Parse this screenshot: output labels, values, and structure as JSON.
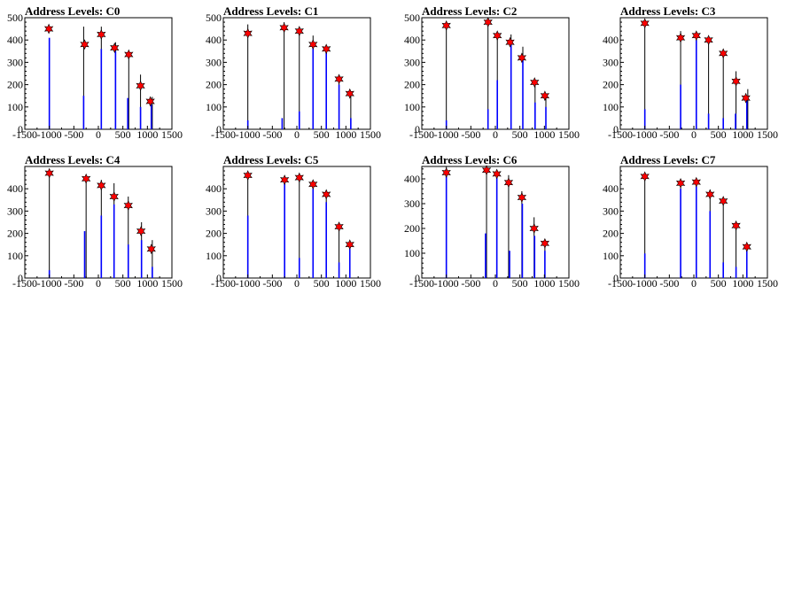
{
  "chart_data": [
    {
      "type": "bar",
      "title": "Address Levels: C0",
      "xlim": [
        -1500,
        1500
      ],
      "ylim": [
        0,
        500
      ],
      "xticks": [
        -1500,
        -1000,
        -500,
        0,
        500,
        1000,
        1500
      ],
      "yticks": [
        0,
        100,
        200,
        300,
        400,
        500
      ],
      "bars": [
        {
          "x": -1000,
          "y": 410
        },
        {
          "x": -300,
          "y": 150
        },
        {
          "x": 60,
          "y": 360
        },
        {
          "x": 350,
          "y": 350
        },
        {
          "x": 600,
          "y": 140
        },
        {
          "x": 860,
          "y": 100
        },
        {
          "x": 1080,
          "y": 110
        }
      ],
      "peaks": [
        {
          "x": -1010,
          "y": 450
        },
        {
          "x": -280,
          "y": 380
        },
        {
          "x": 60,
          "y": 425
        },
        {
          "x": 330,
          "y": 365
        },
        {
          "x": 620,
          "y": 335
        },
        {
          "x": 860,
          "y": 195
        },
        {
          "x": 1060,
          "y": 125
        }
      ],
      "black_lines": [
        {
          "x": -300,
          "y": 460
        },
        {
          "x": 60,
          "y": 460
        },
        {
          "x": 350,
          "y": 390
        },
        {
          "x": 620,
          "y": 340
        },
        {
          "x": 860,
          "y": 245
        },
        {
          "x": 1100,
          "y": 145
        }
      ]
    },
    {
      "type": "bar",
      "title": "Address Levels: C1",
      "xlim": [
        -1500,
        1500
      ],
      "ylim": [
        0,
        500
      ],
      "xticks": [
        -1500,
        -1000,
        -500,
        0,
        500,
        1000,
        1500
      ],
      "yticks": [
        0,
        100,
        200,
        300,
        400,
        500
      ],
      "bars": [
        {
          "x": -1000,
          "y": 40
        },
        {
          "x": -300,
          "y": 50
        },
        {
          "x": 50,
          "y": 80
        },
        {
          "x": 330,
          "y": 380
        },
        {
          "x": 600,
          "y": 350
        },
        {
          "x": 860,
          "y": 200
        },
        {
          "x": 1100,
          "y": 50
        }
      ],
      "peaks": [
        {
          "x": -1000,
          "y": 430
        },
        {
          "x": -260,
          "y": 455
        },
        {
          "x": 50,
          "y": 440
        },
        {
          "x": 330,
          "y": 380
        },
        {
          "x": 600,
          "y": 360
        },
        {
          "x": 860,
          "y": 225
        },
        {
          "x": 1080,
          "y": 160
        }
      ],
      "black_lines": [
        {
          "x": -1000,
          "y": 470
        },
        {
          "x": -260,
          "y": 480
        },
        {
          "x": 50,
          "y": 450
        },
        {
          "x": 330,
          "y": 420
        },
        {
          "x": 600,
          "y": 365
        },
        {
          "x": 860,
          "y": 230
        },
        {
          "x": 1100,
          "y": 170
        }
      ]
    },
    {
      "type": "bar",
      "title": "Address Levels: C2",
      "xlim": [
        -1500,
        1500
      ],
      "ylim": [
        0,
        500
      ],
      "xticks": [
        -1500,
        -1000,
        -500,
        0,
        500,
        1000,
        1500
      ],
      "yticks": [
        0,
        100,
        200,
        300,
        400,
        500
      ],
      "bars": [
        {
          "x": -1000,
          "y": 40
        },
        {
          "x": -150,
          "y": 90
        },
        {
          "x": 40,
          "y": 220
        },
        {
          "x": 320,
          "y": 380
        },
        {
          "x": 560,
          "y": 320
        },
        {
          "x": 810,
          "y": 120
        },
        {
          "x": 1030,
          "y": 100
        }
      ],
      "peaks": [
        {
          "x": -1000,
          "y": 465
        },
        {
          "x": -150,
          "y": 480
        },
        {
          "x": 40,
          "y": 420
        },
        {
          "x": 300,
          "y": 390
        },
        {
          "x": 540,
          "y": 320
        },
        {
          "x": 800,
          "y": 210
        },
        {
          "x": 1010,
          "y": 150
        }
      ],
      "black_lines": [
        {
          "x": -1000,
          "y": 470
        },
        {
          "x": -150,
          "y": 490
        },
        {
          "x": 40,
          "y": 430
        },
        {
          "x": 320,
          "y": 425
        },
        {
          "x": 560,
          "y": 370
        },
        {
          "x": 810,
          "y": 215
        },
        {
          "x": 1030,
          "y": 160
        }
      ]
    },
    {
      "type": "bar",
      "title": "Address Levels: C3",
      "xlim": [
        -1500,
        1500
      ],
      "ylim": [
        0,
        500
      ],
      "xticks": [
        -1500,
        -1000,
        -500,
        0,
        500,
        1000,
        1500
      ],
      "yticks": [
        0,
        100,
        200,
        300,
        400
      ],
      "bars": [
        {
          "x": -1000,
          "y": 90
        },
        {
          "x": -270,
          "y": 200
        },
        {
          "x": 50,
          "y": 400
        },
        {
          "x": 300,
          "y": 70
        },
        {
          "x": 600,
          "y": 50
        },
        {
          "x": 850,
          "y": 70
        },
        {
          "x": 1080,
          "y": 130
        }
      ],
      "peaks": [
        {
          "x": -1000,
          "y": 475
        },
        {
          "x": -270,
          "y": 410
        },
        {
          "x": 50,
          "y": 420
        },
        {
          "x": 300,
          "y": 400
        },
        {
          "x": 600,
          "y": 340
        },
        {
          "x": 860,
          "y": 215
        },
        {
          "x": 1060,
          "y": 140
        }
      ],
      "black_lines": [
        {
          "x": -1000,
          "y": 480
        },
        {
          "x": -270,
          "y": 440
        },
        {
          "x": 50,
          "y": 430
        },
        {
          "x": 300,
          "y": 405
        },
        {
          "x": 600,
          "y": 345
        },
        {
          "x": 860,
          "y": 260
        },
        {
          "x": 1100,
          "y": 180
        }
      ]
    },
    {
      "type": "bar",
      "title": "Address Levels: C4",
      "xlim": [
        -1500,
        1500
      ],
      "ylim": [
        0,
        500
      ],
      "xticks": [
        -1500,
        -1000,
        -500,
        0,
        500,
        1000,
        1500
      ],
      "yticks": [
        0,
        100,
        200,
        300,
        400
      ],
      "bars": [
        {
          "x": -1000,
          "y": 35
        },
        {
          "x": -280,
          "y": 210
        },
        {
          "x": 60,
          "y": 280
        },
        {
          "x": 320,
          "y": 330
        },
        {
          "x": 610,
          "y": 150
        },
        {
          "x": 880,
          "y": 170
        },
        {
          "x": 1100,
          "y": 50
        }
      ],
      "peaks": [
        {
          "x": -1000,
          "y": 470
        },
        {
          "x": -250,
          "y": 445
        },
        {
          "x": 60,
          "y": 415
        },
        {
          "x": 320,
          "y": 365
        },
        {
          "x": 610,
          "y": 325
        },
        {
          "x": 870,
          "y": 210
        },
        {
          "x": 1080,
          "y": 130
        }
      ],
      "black_lines": [
        {
          "x": -1000,
          "y": 475
        },
        {
          "x": -250,
          "y": 450
        },
        {
          "x": 60,
          "y": 440
        },
        {
          "x": 320,
          "y": 425
        },
        {
          "x": 610,
          "y": 365
        },
        {
          "x": 880,
          "y": 250
        },
        {
          "x": 1100,
          "y": 170
        }
      ]
    },
    {
      "type": "bar",
      "title": "Address Levels: C5",
      "xlim": [
        -1500,
        1500
      ],
      "ylim": [
        0,
        500
      ],
      "xticks": [
        -1500,
        -1000,
        -500,
        0,
        500,
        1000,
        1500
      ],
      "yticks": [
        0,
        100,
        200,
        300,
        400
      ],
      "bars": [
        {
          "x": -1000,
          "y": 280
        },
        {
          "x": -250,
          "y": 430
        },
        {
          "x": 50,
          "y": 90
        },
        {
          "x": 330,
          "y": 400
        },
        {
          "x": 600,
          "y": 340
        },
        {
          "x": 860,
          "y": 70
        },
        {
          "x": 1080,
          "y": 130
        }
      ],
      "peaks": [
        {
          "x": -1000,
          "y": 460
        },
        {
          "x": -250,
          "y": 440
        },
        {
          "x": 50,
          "y": 450
        },
        {
          "x": 330,
          "y": 420
        },
        {
          "x": 600,
          "y": 375
        },
        {
          "x": 860,
          "y": 230
        },
        {
          "x": 1080,
          "y": 150
        }
      ],
      "black_lines": [
        {
          "x": -1000,
          "y": 470
        },
        {
          "x": -250,
          "y": 445
        },
        {
          "x": 50,
          "y": 460
        },
        {
          "x": 330,
          "y": 425
        },
        {
          "x": 600,
          "y": 380
        },
        {
          "x": 860,
          "y": 235
        },
        {
          "x": 1080,
          "y": 160
        }
      ]
    },
    {
      "type": "bar",
      "title": "Address Levels: C6",
      "xlim": [
        -1500,
        1500
      ],
      "ylim": [
        0,
        450
      ],
      "xticks": [
        -1500,
        -1000,
        -500,
        0,
        500,
        1000,
        1500
      ],
      "yticks": [
        0,
        100,
        200,
        300,
        400
      ],
      "bars": [
        {
          "x": -1000,
          "y": 440
        },
        {
          "x": -200,
          "y": 180
        },
        {
          "x": 30,
          "y": 410
        },
        {
          "x": 290,
          "y": 110
        },
        {
          "x": 550,
          "y": 300
        },
        {
          "x": 800,
          "y": 170
        },
        {
          "x": 1010,
          "y": 110
        }
      ],
      "peaks": [
        {
          "x": -1000,
          "y": 425
        },
        {
          "x": -180,
          "y": 435
        },
        {
          "x": 30,
          "y": 420
        },
        {
          "x": 270,
          "y": 385
        },
        {
          "x": 540,
          "y": 325
        },
        {
          "x": 790,
          "y": 200
        },
        {
          "x": 1010,
          "y": 140
        }
      ],
      "black_lines": [
        {
          "x": -1000,
          "y": 450
        },
        {
          "x": -180,
          "y": 440
        },
        {
          "x": 30,
          "y": 425
        },
        {
          "x": 270,
          "y": 415
        },
        {
          "x": 540,
          "y": 350
        },
        {
          "x": 790,
          "y": 245
        },
        {
          "x": 1010,
          "y": 150
        }
      ]
    },
    {
      "type": "bar",
      "title": "Address Levels: C7",
      "xlim": [
        -1500,
        1500
      ],
      "ylim": [
        0,
        500
      ],
      "xticks": [
        -1500,
        -1000,
        -500,
        0,
        500,
        1000,
        1500
      ],
      "yticks": [
        0,
        100,
        200,
        300,
        400
      ],
      "bars": [
        {
          "x": -1000,
          "y": 110
        },
        {
          "x": -270,
          "y": 400
        },
        {
          "x": 50,
          "y": 410
        },
        {
          "x": 330,
          "y": 300
        },
        {
          "x": 600,
          "y": 70
        },
        {
          "x": 860,
          "y": 50
        },
        {
          "x": 1080,
          "y": 140
        }
      ],
      "peaks": [
        {
          "x": -1000,
          "y": 455
        },
        {
          "x": -270,
          "y": 425
        },
        {
          "x": 50,
          "y": 430
        },
        {
          "x": 330,
          "y": 375
        },
        {
          "x": 600,
          "y": 345
        },
        {
          "x": 860,
          "y": 235
        },
        {
          "x": 1080,
          "y": 140
        }
      ],
      "black_lines": [
        {
          "x": -1000,
          "y": 470
        },
        {
          "x": -270,
          "y": 430
        },
        {
          "x": 50,
          "y": 440
        },
        {
          "x": 330,
          "y": 395
        },
        {
          "x": 600,
          "y": 360
        },
        {
          "x": 860,
          "y": 240
        },
        {
          "x": 1080,
          "y": 150
        }
      ]
    }
  ]
}
